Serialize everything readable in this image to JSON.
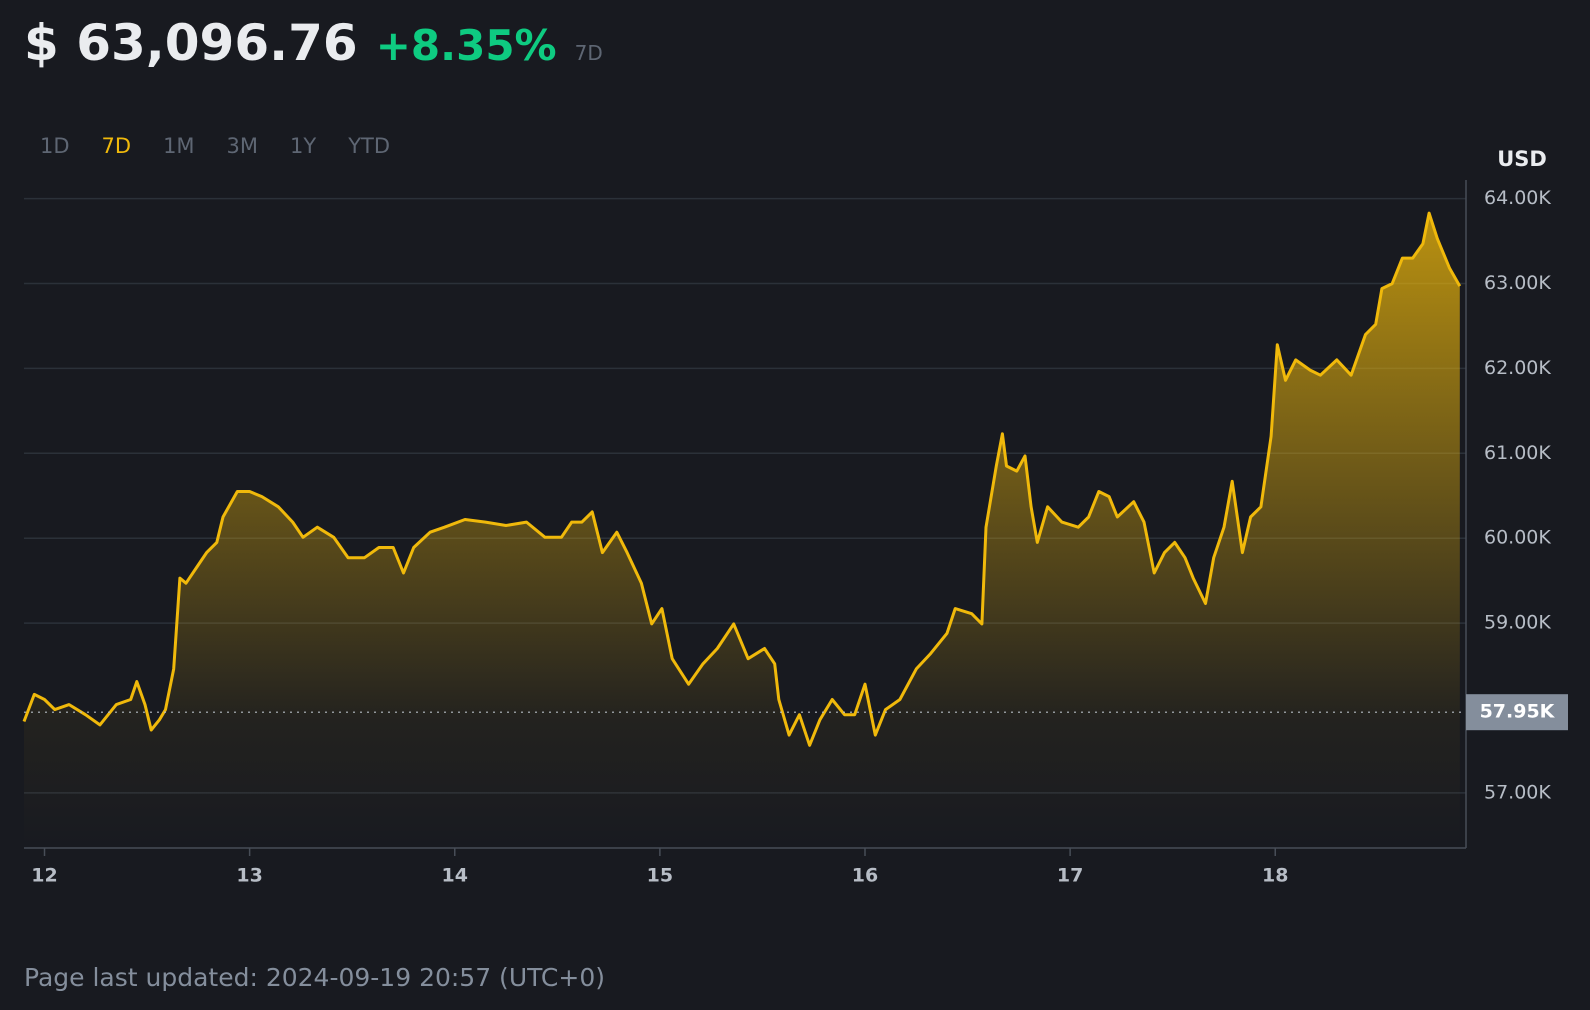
{
  "header": {
    "price": "$ 63,096.76",
    "change": "+8.35%",
    "period": "7D"
  },
  "range_tabs": [
    "1D",
    "7D",
    "1M",
    "3M",
    "1Y",
    "YTD"
  ],
  "active_tab": 1,
  "footer": "Page last updated: 2024-09-19 20:57 (UTC+0)",
  "chart_data": {
    "type": "area",
    "unit_label": "USD",
    "color": "#f0b90b",
    "grid": true,
    "xlim": [
      11.9,
      18.93
    ],
    "xticks": [
      12,
      13,
      14,
      15,
      16,
      17,
      18
    ],
    "ylim": [
      56350,
      64220
    ],
    "yticks": [
      {
        "value": 57000,
        "label": "57.00K"
      },
      {
        "value": 59000,
        "label": "59.00K"
      },
      {
        "value": 60000,
        "label": "60.00K"
      },
      {
        "value": 61000,
        "label": "61.00K"
      },
      {
        "value": 62000,
        "label": "62.00K"
      },
      {
        "value": 63000,
        "label": "63.00K"
      },
      {
        "value": 64000,
        "label": "64.00K"
      }
    ],
    "reference": {
      "value": 57950,
      "label": "57.95K"
    },
    "x": [
      11.9,
      11.95,
      12.0,
      12.05,
      12.12,
      12.2,
      12.27,
      12.35,
      12.42,
      12.45,
      12.49,
      12.52,
      12.56,
      12.59,
      12.63,
      12.66,
      12.69,
      12.74,
      12.79,
      12.84,
      12.87,
      12.94,
      13.0,
      13.06,
      13.14,
      13.21,
      13.26,
      13.33,
      13.41,
      13.48,
      13.56,
      13.63,
      13.7,
      13.75,
      13.8,
      13.88,
      13.95,
      14.05,
      14.15,
      14.25,
      14.35,
      14.44,
      14.52,
      14.57,
      14.62,
      14.67,
      14.72,
      14.79,
      14.84,
      14.91,
      14.96,
      15.01,
      15.06,
      15.14,
      15.21,
      15.28,
      15.36,
      15.43,
      15.51,
      15.56,
      15.58,
      15.63,
      15.68,
      15.73,
      15.78,
      15.84,
      15.9,
      15.95,
      16.0,
      16.05,
      16.1,
      16.17,
      16.25,
      16.32,
      16.4,
      16.44,
      16.52,
      16.57,
      16.59,
      16.64,
      16.67,
      16.69,
      16.74,
      16.78,
      16.81,
      16.84,
      16.89,
      16.96,
      17.04,
      17.09,
      17.14,
      17.19,
      17.23,
      17.31,
      17.36,
      17.41,
      17.46,
      17.51,
      17.56,
      17.6,
      17.66,
      17.7,
      17.75,
      17.79,
      17.84,
      17.88,
      17.93,
      17.98,
      18.01,
      18.05,
      18.1,
      18.17,
      18.22,
      18.3,
      18.37,
      18.44,
      18.49,
      18.52,
      18.57,
      18.62,
      18.67,
      18.72,
      18.75,
      18.79,
      18.85,
      18.9
    ],
    "values": [
      57840,
      58160,
      58100,
      57980,
      58040,
      57920,
      57800,
      58040,
      58100,
      58310,
      58040,
      57740,
      57860,
      57980,
      58460,
      59530,
      59470,
      59650,
      59830,
      59950,
      60250,
      60550,
      60550,
      60490,
      60370,
      60190,
      60010,
      60130,
      60010,
      59770,
      59770,
      59890,
      59890,
      59590,
      59890,
      60070,
      60130,
      60220,
      60190,
      60150,
      60190,
      60010,
      60010,
      60190,
      60190,
      60310,
      59830,
      60070,
      59830,
      59470,
      58990,
      59170,
      58580,
      58280,
      58520,
      58700,
      58990,
      58580,
      58700,
      58520,
      58100,
      57680,
      57920,
      57560,
      57860,
      58100,
      57920,
      57920,
      58280,
      57680,
      57980,
      58100,
      58460,
      58640,
      58880,
      59170,
      59110,
      58990,
      60130,
      60850,
      61230,
      60850,
      60790,
      60970,
      60370,
      59950,
      60370,
      60190,
      60130,
      60250,
      60550,
      60490,
      60250,
      60430,
      60190,
      59590,
      59830,
      59950,
      59770,
      59530,
      59230,
      59770,
      60130,
      60670,
      59830,
      60250,
      60370,
      61200,
      62280,
      61860,
      62100,
      61980,
      61920,
      62100,
      61920,
      62400,
      62520,
      62940,
      63000,
      63300,
      63300,
      63470,
      63830,
      63530,
      63180,
      62970
    ]
  }
}
